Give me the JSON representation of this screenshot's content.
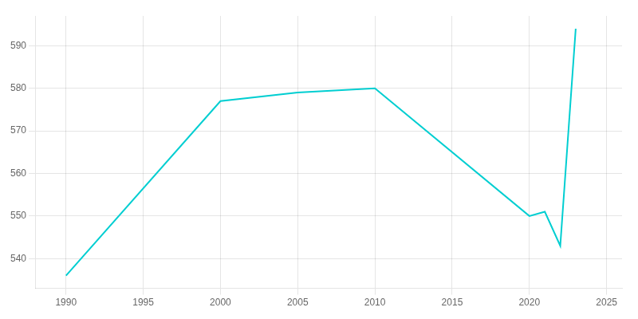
{
  "chart_data": {
    "type": "line",
    "x": [
      1990,
      2000,
      2005,
      2010,
      2020,
      2021,
      2022,
      2023
    ],
    "values": [
      536,
      577,
      579,
      580,
      550,
      551,
      543,
      594
    ],
    "color": "#00CED1",
    "xlim": [
      1988,
      2026
    ],
    "ylim": [
      533,
      597
    ],
    "xticks": [
      1990,
      1995,
      2000,
      2005,
      2010,
      2015,
      2020,
      2025
    ],
    "yticks": [
      540,
      550,
      560,
      570,
      580,
      590
    ],
    "grid": true
  }
}
